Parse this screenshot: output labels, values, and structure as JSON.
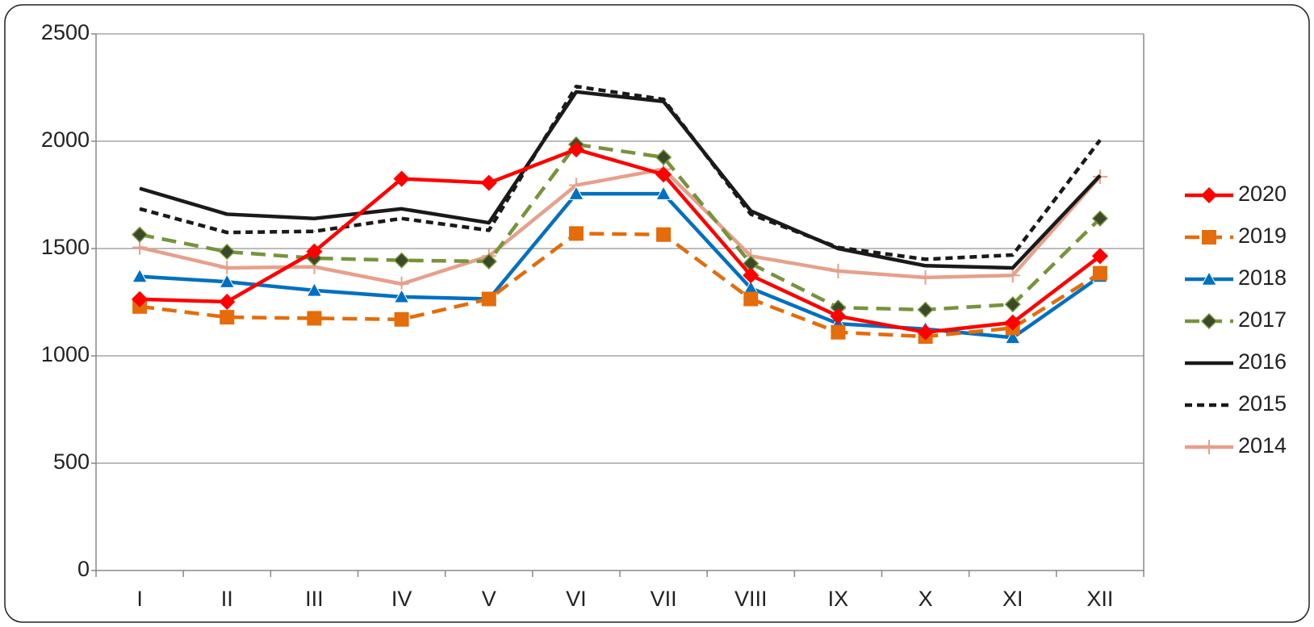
{
  "chart_data": {
    "type": "line",
    "categories": [
      "I",
      "II",
      "III",
      "IV",
      "V",
      "VI",
      "VII",
      "VIII",
      "IX",
      "X",
      "XI",
      "XII"
    ],
    "ylim": [
      0,
      2500
    ],
    "yticks": [
      0,
      500,
      1000,
      1500,
      2000,
      2500
    ],
    "grid": true,
    "legend": "right",
    "series": [
      {
        "name": "2020",
        "color": "#ff0000",
        "marker": "diamond",
        "dash": "solid",
        "values": [
          1264,
          1252,
          1486,
          1825,
          1806,
          1962,
          1845,
          1375,
          1185,
          1110,
          1155,
          1465
        ]
      },
      {
        "name": "2019",
        "color": "#e46c0a",
        "marker": "square",
        "dash": "dashed",
        "values": [
          1230,
          1180,
          1175,
          1170,
          1265,
          1570,
          1565,
          1265,
          1110,
          1090,
          1130,
          1385
        ]
      },
      {
        "name": "2018",
        "color": "#0070c0",
        "marker": "triangle",
        "dash": "solid",
        "values": [
          1370,
          1345,
          1305,
          1275,
          1265,
          1755,
          1755,
          1315,
          1150,
          1125,
          1085,
          1370
        ]
      },
      {
        "name": "2017",
        "color": "#77933c",
        "marker": "diamond-dark",
        "dash": "dashed",
        "values": [
          1565,
          1485,
          1455,
          1445,
          1440,
          1985,
          1925,
          1430,
          1225,
          1215,
          1240,
          1640
        ]
      },
      {
        "name": "2016",
        "color": "#1a1a1a",
        "marker": "none",
        "dash": "solid",
        "values": [
          1780,
          1660,
          1640,
          1685,
          1620,
          2230,
          2185,
          1675,
          1500,
          1420,
          1410,
          1840
        ]
      },
      {
        "name": "2015",
        "color": "#1a1a1a",
        "marker": "none",
        "dash": "short-dashed",
        "values": [
          1685,
          1575,
          1580,
          1640,
          1585,
          2255,
          2195,
          1660,
          1505,
          1450,
          1470,
          2005
        ]
      },
      {
        "name": "2014",
        "color": "#e6a08c",
        "marker": "plus",
        "dash": "solid",
        "values": [
          1505,
          1410,
          1415,
          1335,
          1465,
          1795,
          1870,
          1465,
          1395,
          1365,
          1375,
          1835
        ]
      }
    ]
  }
}
